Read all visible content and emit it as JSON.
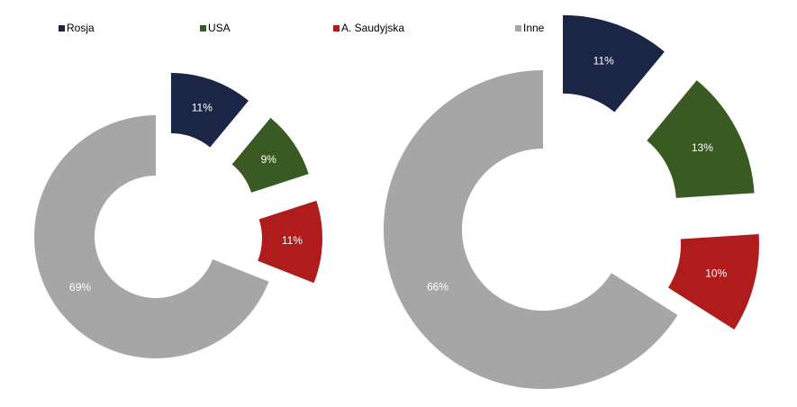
{
  "legend": {
    "categories": [
      "Rosja",
      "USA",
      "A. Saudyjska",
      "Inne"
    ],
    "colors": [
      "#1b2646",
      "#3a5a23",
      "#b01c1c",
      "#a6a6a6"
    ]
  },
  "chart_data": [
    {
      "type": "donut",
      "values": [
        11,
        9,
        11,
        69
      ],
      "value_labels": [
        "11%",
        "9%",
        "11%",
        "69%"
      ]
    },
    {
      "type": "donut",
      "values": [
        11,
        13,
        10,
        66
      ],
      "value_labels": [
        "11%",
        "13%",
        "10%",
        "66%"
      ]
    }
  ]
}
